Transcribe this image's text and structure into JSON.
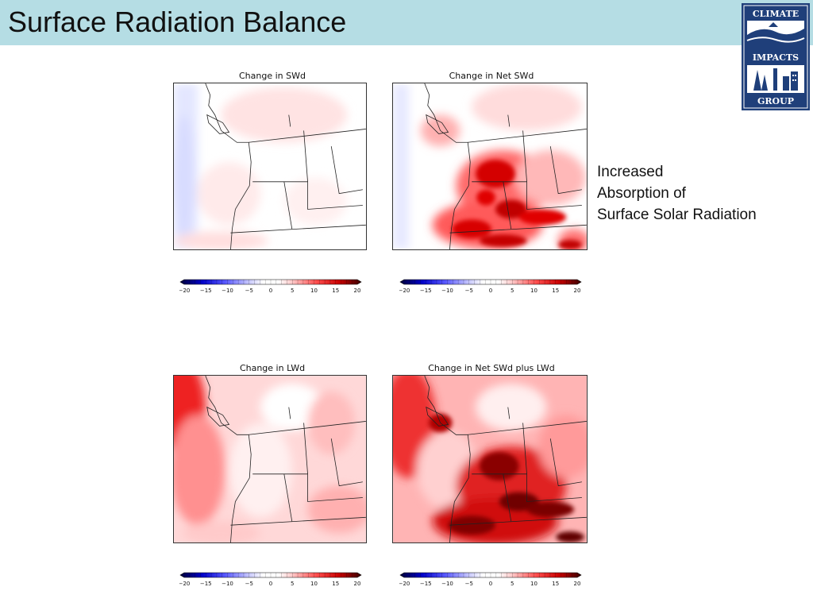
{
  "slide": {
    "title": "Surface Radiation Balance",
    "title_bar_color": "#b5dde4"
  },
  "logo": {
    "lines": [
      "CLIMATE",
      "IMPACTS",
      "GROUP"
    ],
    "color": "#1f3f7a"
  },
  "panels": [
    {
      "title": "Change in SWd"
    },
    {
      "title": "Change in Net SWd"
    },
    {
      "title": "Change in LWd"
    },
    {
      "title": "Change in Net SWd plus LWd"
    }
  ],
  "colorbar": {
    "ticks": [
      "−20",
      "−15",
      "−10",
      "−5",
      "0",
      "5",
      "10",
      "15",
      "20"
    ]
  },
  "annotation": {
    "lines": [
      "Increased",
      "Absorption of",
      "Surface Solar Radiation"
    ]
  }
}
